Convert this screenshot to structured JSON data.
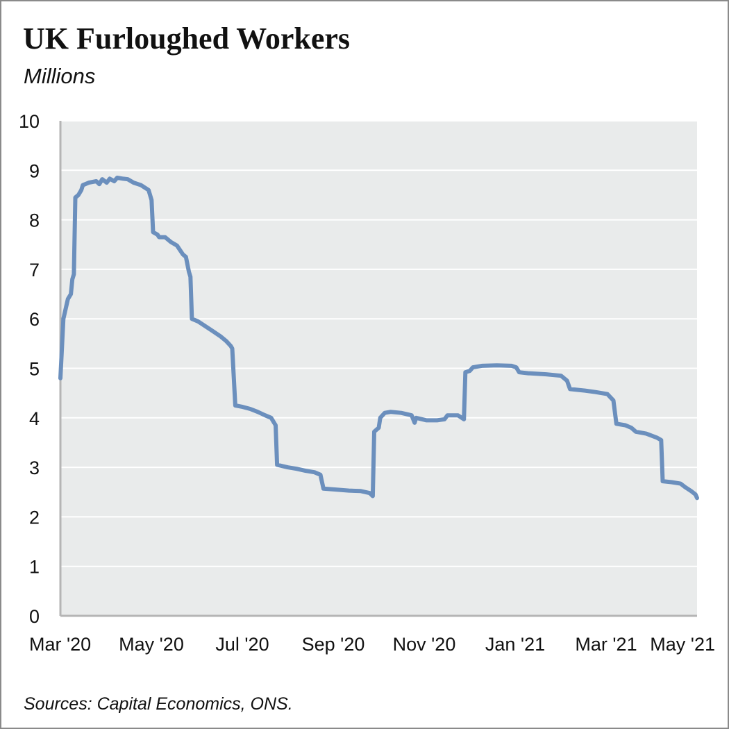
{
  "title": "UK Furloughed Workers",
  "subtitle": "Millions",
  "source": "Sources: Capital Economics, ONS.",
  "colors": {
    "line": "#6b8fbd",
    "plot_bg": "#e9ebeb",
    "grid": "#ffffff",
    "axis": "#b5b5b5"
  },
  "chart_data": {
    "type": "line",
    "title": "UK Furloughed Workers",
    "ylabel": "Millions",
    "xlabel": "",
    "ylim": [
      0,
      10
    ],
    "yticks": [
      "0",
      "1",
      "2",
      "3",
      "4",
      "5",
      "6",
      "7",
      "8",
      "9",
      "10"
    ],
    "xticks": [
      "Mar '20",
      "May '20",
      "Jul '20",
      "Sep '20",
      "Nov '20",
      "Jan '21",
      "Mar '21",
      "May '21"
    ],
    "xlim": [
      "2020-03-01",
      "2021-05-01"
    ],
    "grid": true,
    "legend": "none",
    "series": [
      {
        "points": [
          [
            "2020-03-01",
            4.8
          ],
          [
            "2020-03-03",
            6.0
          ],
          [
            "2020-03-06",
            6.4
          ],
          [
            "2020-03-08",
            6.5
          ],
          [
            "2020-03-09",
            6.8
          ],
          [
            "2020-03-10",
            6.9
          ],
          [
            "2020-03-11",
            8.45
          ],
          [
            "2020-03-13",
            8.5
          ],
          [
            "2020-03-15",
            8.6
          ],
          [
            "2020-03-16",
            8.7
          ],
          [
            "2020-03-20",
            8.75
          ],
          [
            "2020-03-25",
            8.78
          ],
          [
            "2020-03-27",
            8.72
          ],
          [
            "2020-03-29",
            8.82
          ],
          [
            "2020-04-01",
            8.75
          ],
          [
            "2020-04-03",
            8.83
          ],
          [
            "2020-04-06",
            8.78
          ],
          [
            "2020-04-08",
            8.85
          ],
          [
            "2020-04-12",
            8.83
          ],
          [
            "2020-04-15",
            8.82
          ],
          [
            "2020-04-19",
            8.75
          ],
          [
            "2020-04-24",
            8.7
          ],
          [
            "2020-04-29",
            8.6
          ],
          [
            "2020-05-01",
            8.4
          ],
          [
            "2020-05-02",
            7.75
          ],
          [
            "2020-05-05",
            7.7
          ],
          [
            "2020-05-06",
            7.65
          ],
          [
            "2020-05-10",
            7.65
          ],
          [
            "2020-05-14",
            7.55
          ],
          [
            "2020-05-18",
            7.48
          ],
          [
            "2020-05-22",
            7.3
          ],
          [
            "2020-05-24",
            7.25
          ],
          [
            "2020-05-26",
            6.95
          ],
          [
            "2020-05-27",
            6.85
          ],
          [
            "2020-05-28",
            6.0
          ],
          [
            "2020-06-01",
            5.95
          ],
          [
            "2020-06-06",
            5.85
          ],
          [
            "2020-06-11",
            5.75
          ],
          [
            "2020-06-16",
            5.65
          ],
          [
            "2020-06-20",
            5.55
          ],
          [
            "2020-06-23",
            5.45
          ],
          [
            "2020-06-24",
            5.4
          ],
          [
            "2020-06-26",
            4.25
          ],
          [
            "2020-07-01",
            4.22
          ],
          [
            "2020-07-06",
            4.18
          ],
          [
            "2020-07-11",
            4.12
          ],
          [
            "2020-07-16",
            4.05
          ],
          [
            "2020-07-20",
            4.0
          ],
          [
            "2020-07-23",
            3.85
          ],
          [
            "2020-07-24",
            3.05
          ],
          [
            "2020-07-31",
            3.0
          ],
          [
            "2020-08-06",
            2.97
          ],
          [
            "2020-08-12",
            2.93
          ],
          [
            "2020-08-18",
            2.9
          ],
          [
            "2020-08-22",
            2.85
          ],
          [
            "2020-08-24",
            2.57
          ],
          [
            "2020-09-02",
            2.55
          ],
          [
            "2020-09-10",
            2.53
          ],
          [
            "2020-09-18",
            2.52
          ],
          [
            "2020-09-24",
            2.48
          ],
          [
            "2020-09-26",
            2.42
          ],
          [
            "2020-09-27",
            3.72
          ],
          [
            "2020-09-30",
            3.8
          ],
          [
            "2020-10-01",
            4.0
          ],
          [
            "2020-10-04",
            4.1
          ],
          [
            "2020-10-08",
            4.12
          ],
          [
            "2020-10-15",
            4.1
          ],
          [
            "2020-10-22",
            4.05
          ],
          [
            "2020-10-24",
            3.9
          ],
          [
            "2020-10-25",
            4.0
          ],
          [
            "2020-11-01",
            3.95
          ],
          [
            "2020-11-08",
            3.95
          ],
          [
            "2020-11-13",
            3.97
          ],
          [
            "2020-11-15",
            4.05
          ],
          [
            "2020-11-22",
            4.05
          ],
          [
            "2020-11-26",
            3.97
          ],
          [
            "2020-11-27",
            4.92
          ],
          [
            "2020-11-30",
            4.95
          ],
          [
            "2020-12-02",
            5.02
          ],
          [
            "2020-12-08",
            5.05
          ],
          [
            "2020-12-18",
            5.06
          ],
          [
            "2020-12-28",
            5.05
          ],
          [
            "2020-12-31",
            5.02
          ],
          [
            "2021-01-02",
            4.92
          ],
          [
            "2021-01-08",
            4.9
          ],
          [
            "2021-01-20",
            4.88
          ],
          [
            "2021-01-30",
            4.85
          ],
          [
            "2021-02-03",
            4.75
          ],
          [
            "2021-02-05",
            4.58
          ],
          [
            "2021-02-15",
            4.55
          ],
          [
            "2021-02-22",
            4.52
          ],
          [
            "2021-03-02",
            4.48
          ],
          [
            "2021-03-06",
            4.35
          ],
          [
            "2021-03-08",
            3.88
          ],
          [
            "2021-03-14",
            3.85
          ],
          [
            "2021-03-18",
            3.8
          ],
          [
            "2021-03-21",
            3.72
          ],
          [
            "2021-03-28",
            3.68
          ],
          [
            "2021-04-04",
            3.6
          ],
          [
            "2021-04-07",
            3.55
          ],
          [
            "2021-04-08",
            2.72
          ],
          [
            "2021-04-14",
            2.7
          ],
          [
            "2021-04-20",
            2.67
          ],
          [
            "2021-04-23",
            2.6
          ],
          [
            "2021-04-27",
            2.52
          ],
          [
            "2021-04-30",
            2.45
          ],
          [
            "2021-05-01",
            2.38
          ]
        ]
      }
    ]
  }
}
